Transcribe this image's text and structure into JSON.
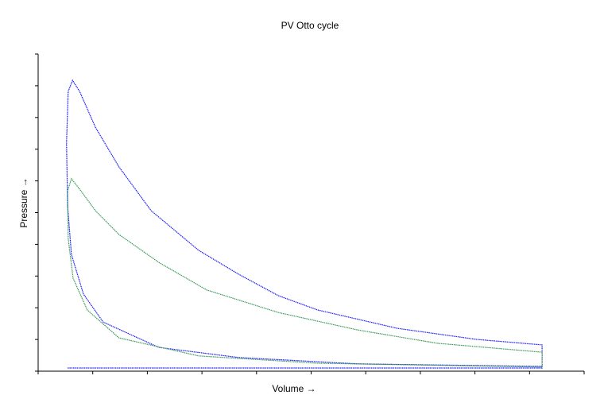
{
  "chart_data": {
    "type": "line",
    "title": "PV Otto cycle",
    "x_label": "Volume →",
    "y_label": "Pressure →",
    "xlim": [
      0,
      10
    ],
    "ylim": [
      0,
      10
    ],
    "xticks": [
      0,
      1,
      2,
      3,
      4,
      5,
      6,
      7,
      8,
      9,
      10
    ],
    "yticks": [
      0,
      1,
      2,
      3,
      4,
      5,
      6,
      7,
      8,
      9,
      10
    ],
    "series": [
      {
        "color": "#1a1aff",
        "x": [
          0.54,
          9.23,
          9.23,
          8.04,
          6.58,
          5.12,
          4.4,
          3.67,
          2.94,
          2.07,
          1.48,
          1.05,
          0.76,
          0.63,
          0.55,
          0.52,
          0.54,
          0.61,
          0.83,
          1.19,
          2.21,
          3.67,
          5.85,
          9.23
        ],
        "values": [
          0.1,
          0.1,
          0.83,
          1.0,
          1.35,
          1.93,
          2.38,
          3.06,
          3.81,
          5.06,
          6.44,
          7.69,
          8.82,
          9.17,
          8.82,
          7.19,
          5.19,
          3.68,
          2.43,
          1.55,
          0.75,
          0.43,
          0.23,
          0.15
        ]
      },
      {
        "color": "#3a9a5a",
        "x": [
          9.23,
          9.23,
          7.31,
          5.85,
          4.4,
          3.09,
          2.21,
          1.48,
          1.05,
          0.76,
          0.61,
          0.54,
          0.55,
          0.64,
          0.9,
          1.48,
          2.94,
          5.12,
          9.23
        ],
        "values": [
          0.13,
          0.6,
          0.88,
          1.3,
          1.85,
          2.56,
          3.43,
          4.31,
          5.06,
          5.74,
          6.07,
          5.69,
          4.19,
          2.93,
          1.93,
          1.05,
          0.48,
          0.25,
          0.13
        ]
      }
    ]
  }
}
